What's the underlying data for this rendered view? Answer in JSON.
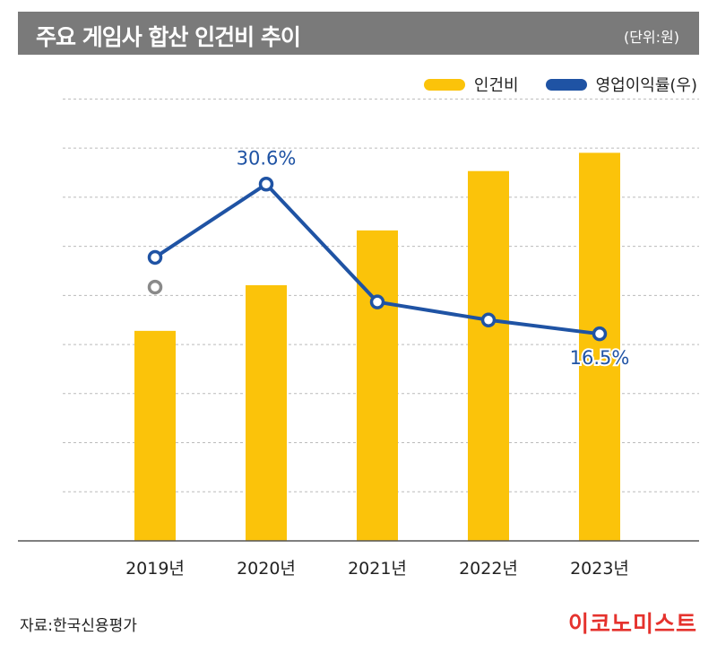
{
  "header": {
    "title": "주요 게임사 합산 인건비 추이",
    "unit": "(단위:원)"
  },
  "legend": {
    "bar_label": "인건비",
    "line_label": "영업이익률(우)"
  },
  "colors": {
    "bar": "#fbc30a",
    "line": "#1f53a4",
    "marker_secondary": "#8a8a8a",
    "title_bg": "#7a7a7a",
    "logo": "#e5322d"
  },
  "chart_data": {
    "type": "bar",
    "categories": [
      "2019년",
      "2020년",
      "2021년",
      "2022년",
      "2023년"
    ],
    "series": [
      {
        "name": "인건비",
        "type": "bar",
        "values": [
          4.6,
          5.6,
          6.8,
          8.1,
          8.5
        ]
      },
      {
        "name": "영업이익률(우)",
        "type": "line",
        "values": [
          23.7,
          30.6,
          19.5,
          17.8,
          16.5
        ]
      }
    ],
    "secondary_point": {
      "category": "2019년",
      "value": 20.9
    },
    "data_labels": [
      {
        "category": "2020년",
        "text": "30.6%"
      },
      {
        "category": "2023년",
        "text": "16.5%"
      }
    ],
    "ylim_left": [
      0,
      10
    ],
    "ylim_right": [
      -3,
      40
    ],
    "grid": true
  },
  "source": "자료:한국신용평가",
  "logo": "이코노미스트"
}
